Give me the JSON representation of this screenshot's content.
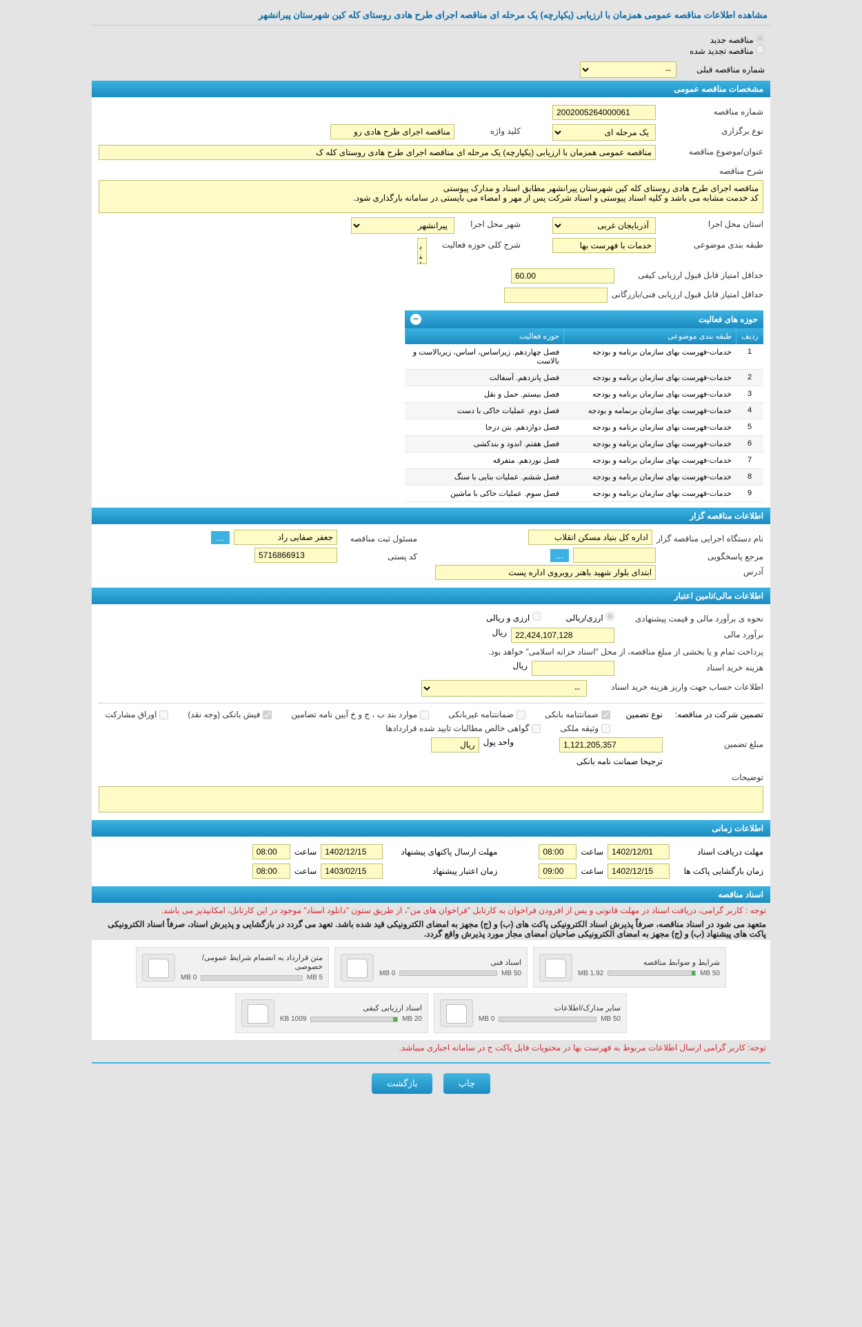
{
  "colors": {
    "header_bg": "#1b8bc0",
    "input_bg": "#fffbc6",
    "page_bg": "#e4e4e4",
    "warn": "#d9292f"
  },
  "page_title": "مشاهده اطلاعات مناقصه عمومی همزمان با ارزیابی (یکپارچه) یک مرحله ای مناقصه اجرای طرح هادی روستای کله کین شهرستان پیرانشهر",
  "radio": {
    "new": "مناقصه جدید",
    "renewed": "مناقصه تجدید شده"
  },
  "prev_tender": {
    "label": "شماره مناقصه قبلی",
    "value": "--"
  },
  "sections": {
    "general": "مشخصات مناقصه عمومی",
    "organizer": "اطلاعات مناقصه گزار",
    "financial": "اطلاعات مالی/تامین اعتبار",
    "timing": "اطلاعات زمانی",
    "documents": "اسناد مناقصه"
  },
  "general": {
    "tender_no_label": "شماره مناقصه",
    "tender_no": "2002005264000061",
    "type_label": "نوع برگزاری",
    "type_value": "یک مرحله ای",
    "keyword_label": "کلید واژه",
    "keyword": "مناقصه اجرای طرح هادی رو",
    "subject_label": "عنوان/موضوع مناقصه",
    "subject": "مناقصه عمومی همزمان با ارزیابی (یکپارچه) یک مرحله ای مناقصه اجرای طرح هادی روستای کله ک",
    "desc_label": "شرح مناقصه",
    "desc": "مناقصه اجرای طرح هادی روستای کله کین شهرستان پیرانشهر مطابق اسناد و مدارک پیوستی\nکد خدمت مشابه می باشد و کلیه اسناد پیوستی و اسناد شرکت پس از مهر و امضاء می بایستی در سامانه بارگذاری شود.",
    "province_label": "استان محل اجرا",
    "province": "آذربایجان غربی",
    "city_label": "شهر محل اجرا",
    "city": "پیرانشهر",
    "topic_label": "طبقه بندی موضوعی",
    "topic": "خدمات با فهرست بها",
    "activity_desc_label": "شرح کلی حوزه فعالیت",
    "activity_desc": "بنائی سنگی 768 مترمکعب،تهیه و اجرای اساس",
    "min_qual_label": "حداقل امتیاز قابل قبول ارزیابی کیفی",
    "min_qual": "60.00",
    "min_tech_label": "حداقل امتیاز قابل قبول ارزیابی فنی/بازرگانی",
    "min_tech": ""
  },
  "activities": {
    "title": "حوزه های فعالیت",
    "headers": {
      "idx": "ردیف",
      "cat": "طبقه بندی موضوعی",
      "act": "حوزه فعالیت"
    },
    "rows": [
      {
        "idx": "1",
        "cat": "خدمات-فهرست بهای سازمان برنامه و بودجه",
        "act": "فصل چهاردهم. زیراساس، اساس، زیربالاست و بالاست"
      },
      {
        "idx": "2",
        "cat": "خدمات-فهرست بهای سازمان برنامه و بودجه",
        "act": "فصل پانزدهم. آسفالت"
      },
      {
        "idx": "3",
        "cat": "خدمات-فهرست بهای سازمان برنامه و بودجه",
        "act": "فصل بیستم. حمل و نقل"
      },
      {
        "idx": "4",
        "cat": "خدمات-فهرست بهای سازمان برنمامه و بودجه",
        "act": "فصل دوم. عملیات خاکی با دست"
      },
      {
        "idx": "5",
        "cat": "خدمات-فهرست بهای سازمان برنامه و بودجه",
        "act": "فصل دوازدهم. بتن درجا"
      },
      {
        "idx": "6",
        "cat": "خدمات-فهرست بهای سازمان برنامه و بودجه",
        "act": "فصل هفتم. اندود و بندکشی"
      },
      {
        "idx": "7",
        "cat": "خدمات-فهرست بهای سازمان برنامه و بودجه",
        "act": "فصل نوزدهم. متفرقه"
      },
      {
        "idx": "8",
        "cat": "خدمات-فهرست بهای سازمان برنامه و بودجه",
        "act": "فصل ششم. عملیات بنایی با سنگ"
      },
      {
        "idx": "9",
        "cat": "خدمات-فهرست بهای سازمان برنامه و بودجه",
        "act": "فصل سوم. عملیات خاکی با ماشین"
      }
    ]
  },
  "organizer": {
    "org_label": "نام دستگاه اجرایی مناقصه گزار",
    "org": "اداره کل بنیاد مسکن انقلاب",
    "resp_label": "مسئول ثبت مناقصه",
    "resp": "جعفر صفایی راد",
    "contact_label": "مرجع پاسخگویی",
    "contact": "",
    "postal_label": "کد پستی",
    "postal": "5716866913",
    "address_label": "آدرس",
    "address": "ابتدای بلوار شهید باهنر روبروی اداره پست"
  },
  "finance": {
    "estimate_label": "نحوه ی برآورد مالی و قیمت پیشنهادی",
    "opt_rial": "ارزی/ریالی",
    "opt_both": "ارزی و ریالی",
    "amount_label": "برآورد مالی",
    "amount": "22,424,107,128",
    "currency": "ریال",
    "payment_note": "پرداخت تمام و یا بخشی از مبلغ مناقصه، از محل \"اسناد خزانه اسلامی\" خواهد بود.",
    "doc_cost_label": "هزینه خرید اسناد",
    "doc_cost": "",
    "doc_cost_currency": "ریال",
    "acct_label": "اطلاعات حساب جهت واریز هزینه خرید اسناد",
    "acct_value": "--",
    "guarantee_header": "تضمین شرکت در مناقصه:",
    "guarantee_type_label": "نوع تضمین",
    "chk": {
      "bank": "ضمانتنامه بانکی",
      "nonbank": "ضمانتنامه غیربانکی",
      "case": "موارد بند ب ، ج و خ آیین نامه تضامین",
      "fish": "فیش بانکی (وجه نقد)",
      "stock": "اوراق مشارکت",
      "property": "وثیقه ملکی",
      "cert": "گواهی خالص مطالبات تایید شده قراردادها"
    },
    "guarantee_amount_label": "مبلغ تضمین",
    "guarantee_amount": "1,121,205,357",
    "unit_label": "واحد پول",
    "unit": "ریال",
    "pref_note": "ترجیحا ضمانت نامه بانکی",
    "note_label": "توضیحات"
  },
  "timing": {
    "receive_label": "مهلت دریافت اسناد",
    "receive_date": "1402/12/01",
    "saat": "ساعت",
    "receive_time": "08:00",
    "submit_label": "مهلت ارسال پاکتهای پیشنهاد",
    "submit_date": "1402/12/15",
    "submit_time": "08:00",
    "open_label": "زمان بازگشایی پاکت ها",
    "open_date": "1402/12/15",
    "open_time": "09:00",
    "valid_label": "زمان اعتبار پیشنهاد",
    "valid_date": "1403/02/15",
    "valid_time": "08:00"
  },
  "docs": {
    "warn1": "توجه : کاربر گرامی، دریافت اسناد در مهلت قانونی و پس از افزودن فراخوان به کارتابل \"فراخوان های من\"، از طریق ستون \"دانلود اسناد\" موجود در این کارتابل، امکانپذیر می باشد.",
    "warn2": "متعهد می شود در اسناد مناقصه، صرفاً پذیرش اسناد الکترونیکی پاکت های (ب) و (ج) مجهز به امضای الکترونیکی قید شده باشد. تعهد می گردد در بازگشایی و پذیرش اسناد، صرفاً اسناد الکترونیکی پاکت های پیشنهاد (ب) و (ج) مجهز به امضای الکترونیکی صاحبان امضای مجاز مورد پذیرش واقع گردد.",
    "warn3": "توجه: کاربر گرامی ارسال اطلاعات مربوط به فهرست بها در محتویات فایل پاکت ج در سامانه اجباری میباشد.",
    "tiles": [
      {
        "title": "شرایط و ضوابط مناقصه",
        "used": "1.92 MB",
        "max": "50 MB",
        "pct": 4
      },
      {
        "title": "اسناد فنی",
        "used": "0 MB",
        "max": "50 MB",
        "pct": 0
      },
      {
        "title": "متن قرارداد به انضمام شرایط عمومی/خصوصی",
        "used": "0 MB",
        "max": "5 MB",
        "pct": 0
      },
      {
        "title": "سایر مدارک/اطلاعات",
        "used": "0 MB",
        "max": "50 MB",
        "pct": 0
      },
      {
        "title": "اسناد ارزیابی کیفی",
        "used": "1009 KB",
        "max": "20 MB",
        "pct": 5
      }
    ]
  },
  "buttons": {
    "print": "چاپ",
    "back": "بازگشت"
  }
}
